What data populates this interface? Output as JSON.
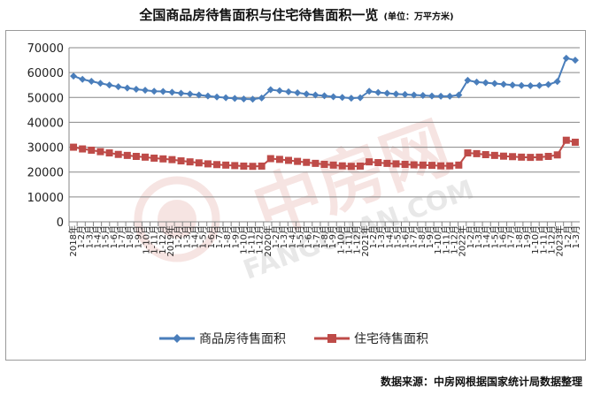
{
  "title": "全国商品房待售面积与住宅待售面积一览",
  "unit": "(单位：万平方米)",
  "source": "数据来源：中房网根据国家统计局数据整理",
  "watermark": {
    "cn": "中房网",
    "en": "FANGCHAN.COM"
  },
  "colors": {
    "series1": "#4a7ebb",
    "series2": "#be4b48",
    "grid": "#878787"
  },
  "chart_data": {
    "type": "line",
    "ylim": [
      0,
      70000
    ],
    "yticks": [
      0,
      10000,
      20000,
      30000,
      40000,
      50000,
      60000,
      70000
    ],
    "x": [
      "2018年1-2月",
      "1-3月",
      "1-4月",
      "1-5月",
      "1-6月",
      "1-7月",
      "1-8月",
      "1-9月",
      "1-10月",
      "1-11月",
      "1-12月",
      "2019年1-2月",
      "1-3月",
      "1-4月",
      "1-5月",
      "1-6月",
      "1-7月",
      "1-8月",
      "1-9月",
      "1-10月",
      "1-11月",
      "1-12月",
      "2020年1-2月",
      "1-3月",
      "1-4月",
      "1-5月",
      "1-6月",
      "1-7月",
      "1-8月",
      "1-9月",
      "1-10月",
      "1-11月",
      "1-12月",
      "2021年1-2月",
      "1-3月",
      "1-4月",
      "1-5月",
      "1-6月",
      "1-7月",
      "1-8月",
      "1-9月",
      "1-10月",
      "1-11月",
      "1-12月",
      "2022年1-2月",
      "1-3月",
      "1-4月",
      "1-5月",
      "1-6月",
      "1-7月",
      "1-8月",
      "1-9月",
      "1-10月",
      "1-11月",
      "1-12月",
      "2023年1-2月",
      "1-3月"
    ],
    "x_labels": [
      "2018年",
      "1-2月",
      "1-3月",
      "1-4月",
      "1-5月",
      "1-6月",
      "1-7月",
      "1-8月",
      "1-9月",
      "1-10月",
      "1-11月",
      "1-12月",
      "2019年",
      "1-2月",
      "1-3月",
      "1-4月",
      "1-5月",
      "1-6月",
      "1-7月",
      "1-8月",
      "1-9月",
      "1-10月",
      "1-11月",
      "1-12月",
      "2020年",
      "1-2月",
      "1-3月",
      "1-4月",
      "1-5月",
      "1-6月",
      "1-7月",
      "1-8月",
      "1-9月",
      "1-10月",
      "1-11月",
      "1-12月",
      "2021年",
      "1-2月",
      "1-3月",
      "1-4月",
      "1-5月",
      "1-6月",
      "1-7月",
      "1-8月",
      "1-9月",
      "1-10月",
      "1-11月",
      "1-12月",
      "2022年",
      "1-2月",
      "1-3月",
      "1-4月",
      "1-5月",
      "1-6月",
      "1-7月",
      "1-8月",
      "1-9月",
      "1-10月",
      "1-11月",
      "1-12月",
      "2023年",
      "1-2月",
      "1-3月"
    ],
    "series": [
      {
        "name": "商品房待售面积",
        "values": [
          58600,
          57300,
          56500,
          55700,
          55000,
          54300,
          53800,
          53300,
          52900,
          52500,
          52400,
          52100,
          51700,
          51400,
          51000,
          50600,
          50200,
          49900,
          49600,
          49400,
          49300,
          49800,
          53100,
          52700,
          52300,
          51900,
          51400,
          51000,
          50700,
          50300,
          50000,
          49700,
          49900,
          52500,
          52000,
          51700,
          51400,
          51200,
          51000,
          50800,
          50600,
          50500,
          50500,
          51000,
          56900,
          56200,
          55900,
          55600,
          55300,
          55000,
          54800,
          54700,
          54800,
          55200,
          56400,
          65800,
          65000
        ]
      },
      {
        "name": "住宅待售面积",
        "values": [
          30000,
          29300,
          28800,
          28200,
          27700,
          27100,
          26700,
          26300,
          26000,
          25600,
          25300,
          25000,
          24500,
          24100,
          23700,
          23300,
          23000,
          22800,
          22600,
          22400,
          22300,
          22400,
          25400,
          25100,
          24700,
          24300,
          23900,
          23500,
          23100,
          22800,
          22500,
          22300,
          22400,
          24100,
          23800,
          23500,
          23300,
          23100,
          22900,
          22800,
          22700,
          22500,
          22500,
          22800,
          27700,
          27400,
          27000,
          26700,
          26400,
          26200,
          26000,
          25900,
          26000,
          26300,
          26900,
          32800,
          32000
        ]
      }
    ],
    "legend_position": "bottom"
  }
}
